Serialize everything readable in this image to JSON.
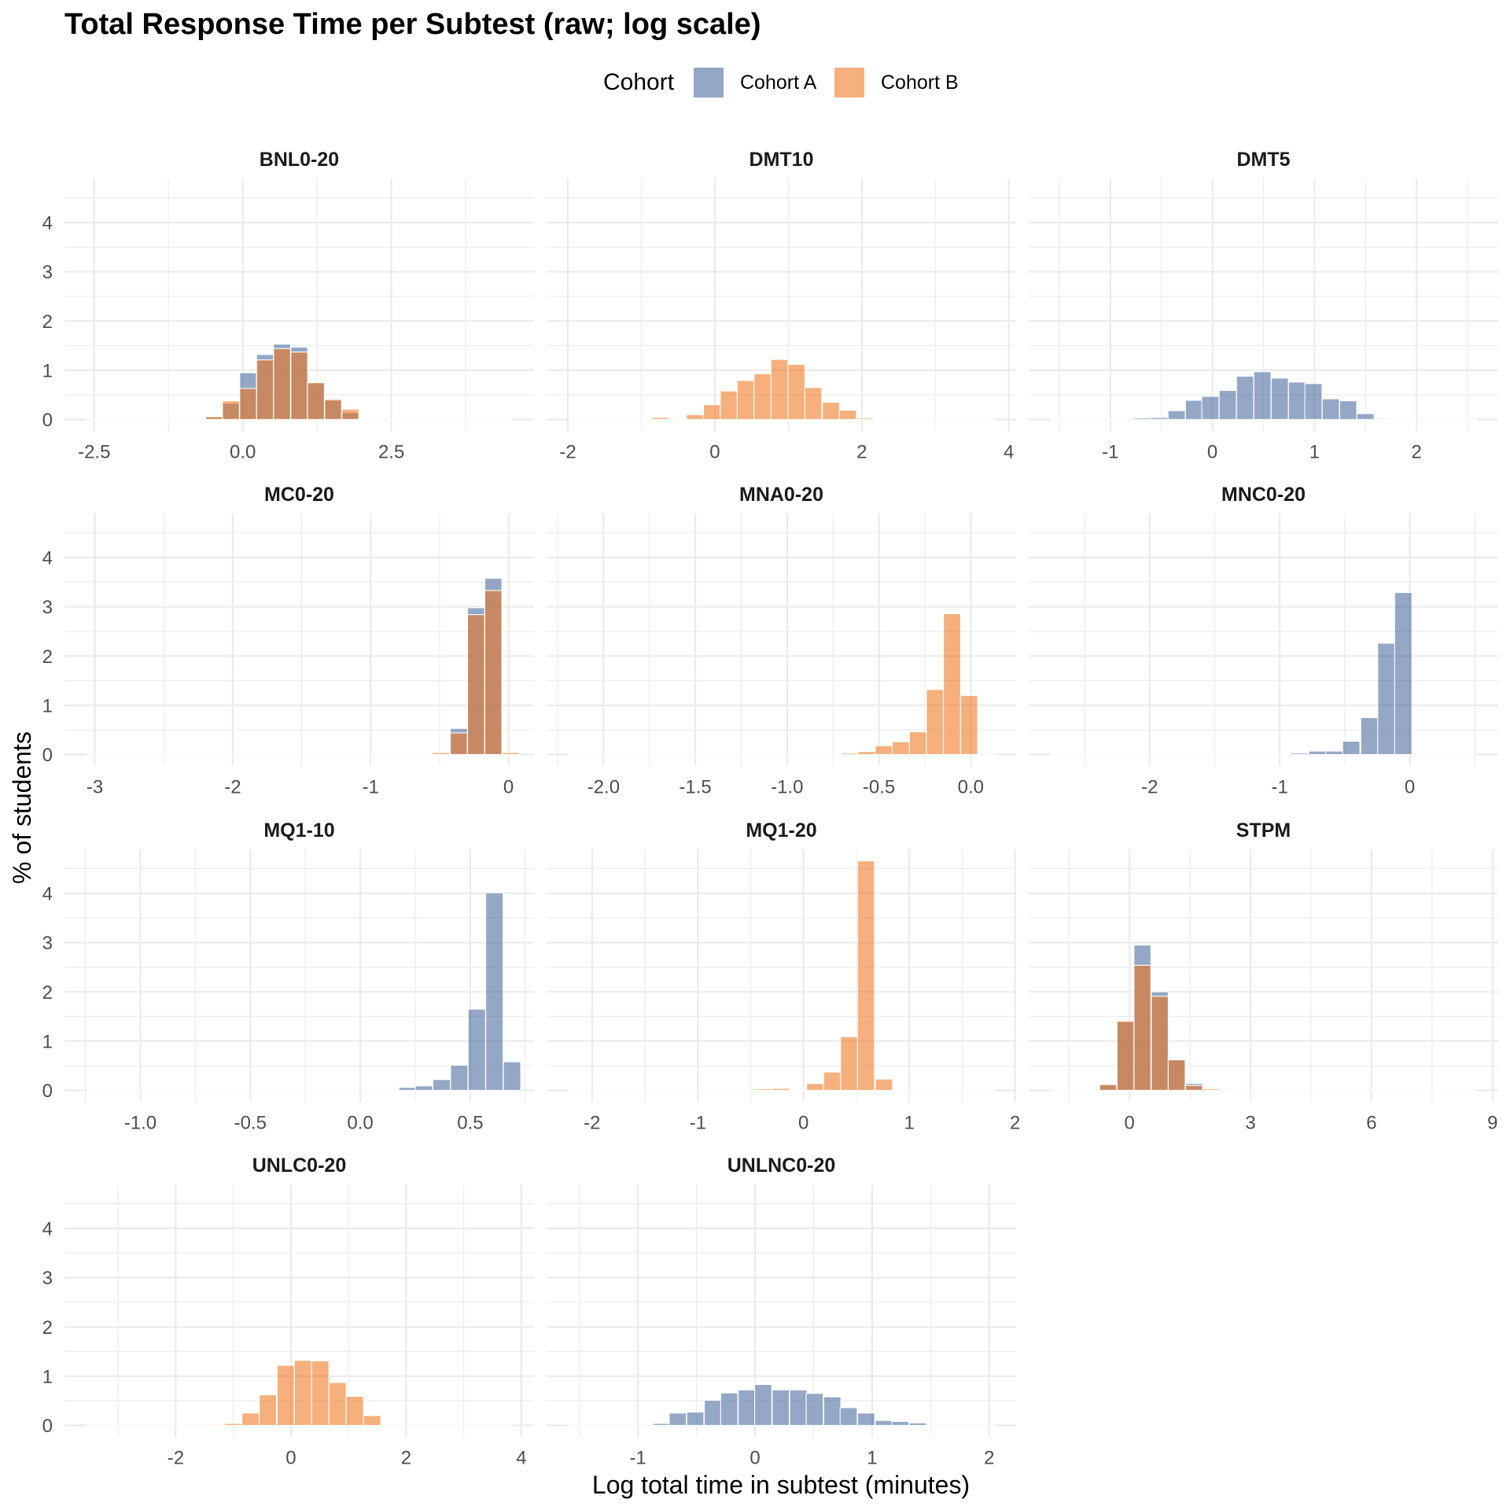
{
  "legend": {
    "title": "Cohort",
    "position": "top",
    "items": [
      {
        "label": "Cohort A",
        "color": "#3C6197"
      },
      {
        "label": "Cohort B",
        "color": "#EF6F13"
      }
    ]
  },
  "chart_data": {
    "type": "bar",
    "subtype": "faceted overlapping histogram",
    "title": "Total Response Time per Subtest (raw; log scale)",
    "xlabel": "Log total time in subtest (minutes)",
    "ylabel": "% of students",
    "ylim": [
      -0.233,
      4.893
    ],
    "yticks": [
      0,
      1,
      2,
      3,
      4
    ],
    "ytick_labels": [
      "0",
      "1",
      "2",
      "3",
      "4"
    ],
    "grid": true,
    "fill_alpha": 0.55,
    "legend_position": "top",
    "panels": [
      {
        "name": "BNL0-20",
        "xlim": [
          -3.0,
          4.9
        ],
        "xticks": [
          -2.5,
          0,
          2.5
        ],
        "xtick_labels": [
          "-2.5",
          "0.0",
          "2.5"
        ],
        "bin_width": 0.285,
        "bins": [
          -0.48,
          -0.2,
          0.09,
          0.375,
          0.66,
          0.95,
          1.23,
          1.52,
          1.81,
          2.09
        ],
        "series": [
          {
            "name": "Cohort A",
            "values": [
              0.05,
              0.33,
              0.95,
              1.32,
              1.53,
              1.47,
              0.74,
              0.39,
              0.14,
              0.01
            ]
          },
          {
            "name": "Cohort B",
            "values": [
              0.06,
              0.38,
              0.63,
              1.21,
              1.44,
              1.37,
              0.75,
              0.41,
              0.21,
              0.01
            ]
          }
        ]
      },
      {
        "name": "DMT10",
        "xlim": [
          -2.29,
          4.1
        ],
        "xticks": [
          -2,
          0,
          2,
          4
        ],
        "xtick_labels": [
          "-2",
          "0",
          "2",
          "4"
        ],
        "bin_width": 0.232,
        "bins": [
          -0.74,
          -0.5,
          -0.27,
          -0.04,
          0.19,
          0.42,
          0.65,
          0.88,
          1.11,
          1.34,
          1.58,
          1.81,
          2.04
        ],
        "series": [
          {
            "name": "Cohort B",
            "values": [
              0.04,
              0.02,
              0.1,
              0.3,
              0.58,
              0.79,
              0.93,
              1.22,
              1.12,
              0.65,
              0.35,
              0.19,
              0.03
            ]
          }
        ]
      },
      {
        "name": "DMT5",
        "xlim": [
          -1.8,
          2.8
        ],
        "xticks": [
          -1,
          0,
          1,
          2
        ],
        "xtick_labels": [
          "-1",
          "0",
          "1",
          "2"
        ],
        "bin_width": 0.168,
        "bins": [
          -0.69,
          -0.52,
          -0.35,
          -0.18,
          -0.02,
          0.15,
          0.32,
          0.49,
          0.66,
          0.83,
          0.99,
          1.16,
          1.33,
          1.5,
          1.67
        ],
        "series": [
          {
            "name": "Cohort A",
            "values": [
              0.03,
              0.04,
              0.18,
              0.39,
              0.47,
              0.59,
              0.88,
              0.97,
              0.84,
              0.76,
              0.73,
              0.42,
              0.38,
              0.12,
              0.02
            ]
          }
        ]
      },
      {
        "name": "MC0-20",
        "xlim": [
          -3.22,
          0.185
        ],
        "xticks": [
          -3,
          -2,
          -1,
          0
        ],
        "xtick_labels": [
          "-3",
          "-2",
          "-1",
          "0"
        ],
        "bin_width": 0.124,
        "bins": [
          -0.49,
          -0.36,
          -0.235,
          -0.11,
          0.02
        ],
        "series": [
          {
            "name": "Cohort A",
            "values": [
              0.02,
              0.53,
              2.98,
              3.58,
              0.02
            ]
          },
          {
            "name": "Cohort B",
            "values": [
              0.04,
              0.44,
              2.84,
              3.33,
              0.04
            ]
          }
        ]
      },
      {
        "name": "MNA0-20",
        "xlim": [
          -2.31,
          0.247
        ],
        "xticks": [
          -2.0,
          -1.5,
          -1.0,
          -0.5,
          0.0
        ],
        "xtick_labels": [
          "-2.0",
          "-1.5",
          "-1.0",
          "-0.5",
          "0.0"
        ],
        "bin_width": 0.093,
        "bins": [
          -0.66,
          -0.567,
          -0.474,
          -0.381,
          -0.288,
          -0.195,
          -0.102,
          -0.009
        ],
        "series": [
          {
            "name": "Cohort B",
            "values": [
              0.03,
              0.06,
              0.18,
              0.26,
              0.46,
              1.32,
              2.86,
              1.2
            ]
          }
        ]
      },
      {
        "name": "MNC0-20",
        "xlim": [
          -2.93,
          0.68
        ],
        "xticks": [
          -2,
          -1,
          0
        ],
        "xtick_labels": [
          "-2",
          "-1",
          "0"
        ],
        "bin_width": 0.133,
        "bins": [
          -0.98,
          -0.85,
          -0.71,
          -0.58,
          -0.45,
          -0.31,
          -0.18,
          -0.05
        ],
        "series": [
          {
            "name": "Cohort A",
            "values": [
              0.01,
              0.03,
              0.07,
              0.07,
              0.27,
              0.75,
              2.26,
              3.29
            ]
          }
        ]
      },
      {
        "name": "MQ1-10",
        "xlim": [
          -1.345,
          0.79
        ],
        "xticks": [
          -1.0,
          -0.5,
          0.0,
          0.5
        ],
        "xtick_labels": [
          "-1.0",
          "-0.5",
          "0.0",
          "0.5"
        ],
        "bin_width": 0.079,
        "bins": [
          0.215,
          0.29,
          0.37,
          0.45,
          0.53,
          0.61,
          0.69
        ],
        "series": [
          {
            "name": "Cohort A",
            "values": [
              0.06,
              0.09,
              0.22,
              0.51,
              1.65,
              4.01,
              0.58
            ]
          }
        ]
      },
      {
        "name": "MQ1-20",
        "xlim": [
          -2.43,
          2.01
        ],
        "xticks": [
          -2,
          -1,
          0,
          1,
          2
        ],
        "xtick_labels": [
          "-2",
          "-1",
          "0",
          "1",
          "2"
        ],
        "bin_width": 0.161,
        "bins": [
          -0.37,
          -0.21,
          0.11,
          0.27,
          0.43,
          0.59,
          0.76
        ],
        "series": [
          {
            "name": "Cohort B",
            "values": [
              0.03,
              0.04,
              0.14,
              0.37,
              1.09,
              4.66,
              0.23
            ]
          }
        ]
      },
      {
        "name": "STPM",
        "xlim": [
          -2.5,
          9.14
        ],
        "xticks": [
          0,
          3,
          6,
          9
        ],
        "xtick_labels": [
          "0",
          "3",
          "6",
          "9"
        ],
        "bin_width": 0.42,
        "bins": [
          -0.53,
          -0.1,
          0.32,
          0.75,
          1.17,
          1.6,
          2.02
        ],
        "series": [
          {
            "name": "Cohort A",
            "values": [
              0.11,
              1.39,
              2.95,
              2.0,
              0.62,
              0.14,
              0.01
            ]
          },
          {
            "name": "Cohort B",
            "values": [
              0.12,
              1.41,
              2.54,
              1.91,
              0.62,
              0.1,
              0.03
            ]
          }
        ]
      },
      {
        "name": "UNLC0-20",
        "xlim": [
          -3.93,
          4.22
        ],
        "xticks": [
          -2,
          0,
          2,
          4
        ],
        "xtick_labels": [
          "-2",
          "0",
          "2",
          "4"
        ],
        "bin_width": 0.3,
        "bins": [
          -1.3,
          -1.0,
          -0.7,
          -0.4,
          -0.09,
          0.21,
          0.51,
          0.81,
          1.11,
          1.41
        ],
        "series": [
          {
            "name": "Cohort B",
            "values": [
              0.02,
              0.04,
              0.25,
              0.62,
              1.22,
              1.32,
              1.31,
              0.87,
              0.59,
              0.2
            ]
          }
        ]
      },
      {
        "name": "UNLNC0-20",
        "xlim": [
          -1.78,
          2.23
        ],
        "xticks": [
          -1,
          0,
          1,
          2
        ],
        "xtick_labels": [
          "-1",
          "0",
          "1",
          "2"
        ],
        "bin_width": 0.146,
        "bins": [
          -0.8,
          -0.66,
          -0.51,
          -0.36,
          -0.22,
          -0.07,
          0.07,
          0.22,
          0.37,
          0.51,
          0.66,
          0.8,
          0.95,
          1.1,
          1.24,
          1.39
        ],
        "series": [
          {
            "name": "Cohort A",
            "values": [
              0.04,
              0.25,
              0.27,
              0.51,
              0.66,
              0.72,
              0.83,
              0.72,
              0.72,
              0.65,
              0.58,
              0.36,
              0.25,
              0.1,
              0.08,
              0.05
            ]
          }
        ]
      }
    ]
  }
}
